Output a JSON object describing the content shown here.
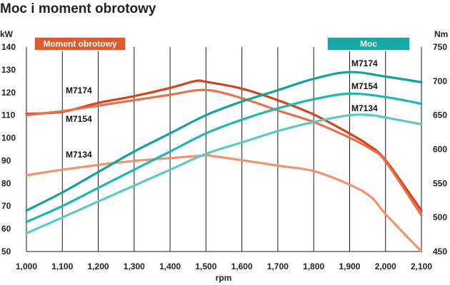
{
  "chart_data": {
    "type": "line",
    "title": "Moc i moment obrotowy",
    "xlabel": "rpm",
    "ylabel_left": "kW",
    "ylabel_right": "Nm",
    "x": [
      1000,
      1100,
      1200,
      1300,
      1400,
      1500,
      1600,
      1700,
      1800,
      1900,
      2000,
      2100
    ],
    "x_tick_labels": [
      "1,000",
      "1,100",
      "1,200",
      "1,300",
      "1,400",
      "1,500",
      "1,600",
      "1,700",
      "1,800",
      "1,900",
      "2,000",
      "2,100"
    ],
    "ylim_left": [
      50,
      140
    ],
    "ylim_right": [
      450,
      750
    ],
    "y_left_ticks": [
      50,
      60,
      70,
      80,
      90,
      100,
      110,
      120,
      130,
      140
    ],
    "y_right_ticks": [
      450,
      500,
      550,
      600,
      650,
      700,
      750
    ],
    "grid": "vertical",
    "legend": [
      {
        "label": "Moment obrotowy",
        "color": "#e05a2b",
        "placement": "top-left"
      },
      {
        "label": "Moc",
        "color": "#15aaa8",
        "placement": "top-right"
      }
    ],
    "torque_series": [
      {
        "name": "M7174",
        "color": "#d4441c",
        "axis": "right",
        "x": [
          1000,
          1100,
          1200,
          1300,
          1400,
          1470,
          1500,
          1600,
          1700,
          1800,
          1900,
          1950,
          2000,
          2100
        ],
        "values": [
          652,
          655,
          668,
          678,
          690,
          700,
          699,
          689,
          672,
          651,
          623,
          607,
          584,
          510
        ]
      },
      {
        "name": "M7154",
        "color": "#e8714a",
        "axis": "right",
        "x": [
          1000,
          1100,
          1200,
          1300,
          1400,
          1500,
          1600,
          1700,
          1800,
          1900,
          1960,
          2000,
          2100
        ],
        "values": [
          650,
          656,
          664,
          672,
          680,
          687,
          675,
          657,
          640,
          617,
          600,
          582,
          503
        ]
      },
      {
        "name": "M7134",
        "color": "#f0946f",
        "axis": "right",
        "x": [
          1000,
          1100,
          1200,
          1300,
          1400,
          1500,
          1520,
          1600,
          1700,
          1800,
          1900,
          1960,
          2000,
          2100
        ],
        "values": [
          562,
          570,
          577,
          583,
          587,
          591,
          590,
          584,
          576,
          568,
          548,
          530,
          505,
          450
        ]
      }
    ],
    "power_series": [
      {
        "name": "M7174",
        "color": "#13a39a",
        "axis": "left",
        "x": [
          1000,
          1100,
          1200,
          1300,
          1400,
          1500,
          1600,
          1700,
          1800,
          1900,
          2000,
          2100
        ],
        "values": [
          68,
          76,
          85,
          94,
          102,
          110,
          116,
          121,
          126,
          129,
          127,
          124.5
        ]
      },
      {
        "name": "M7154",
        "color": "#1cb8b0",
        "axis": "left",
        "x": [
          1000,
          1100,
          1200,
          1300,
          1400,
          1500,
          1600,
          1700,
          1800,
          1900,
          2000,
          2100
        ],
        "values": [
          63,
          70,
          78,
          86,
          94,
          102,
          108,
          113,
          117,
          119.5,
          118,
          115
        ]
      },
      {
        "name": "M7134",
        "color": "#5ec9c4",
        "axis": "left",
        "x": [
          1000,
          1100,
          1200,
          1300,
          1400,
          1500,
          1600,
          1700,
          1800,
          1900,
          1960,
          2000,
          2100
        ],
        "values": [
          58,
          65,
          72,
          79,
          86,
          93,
          98,
          103,
          107,
          110,
          110,
          109,
          106
        ]
      }
    ]
  }
}
